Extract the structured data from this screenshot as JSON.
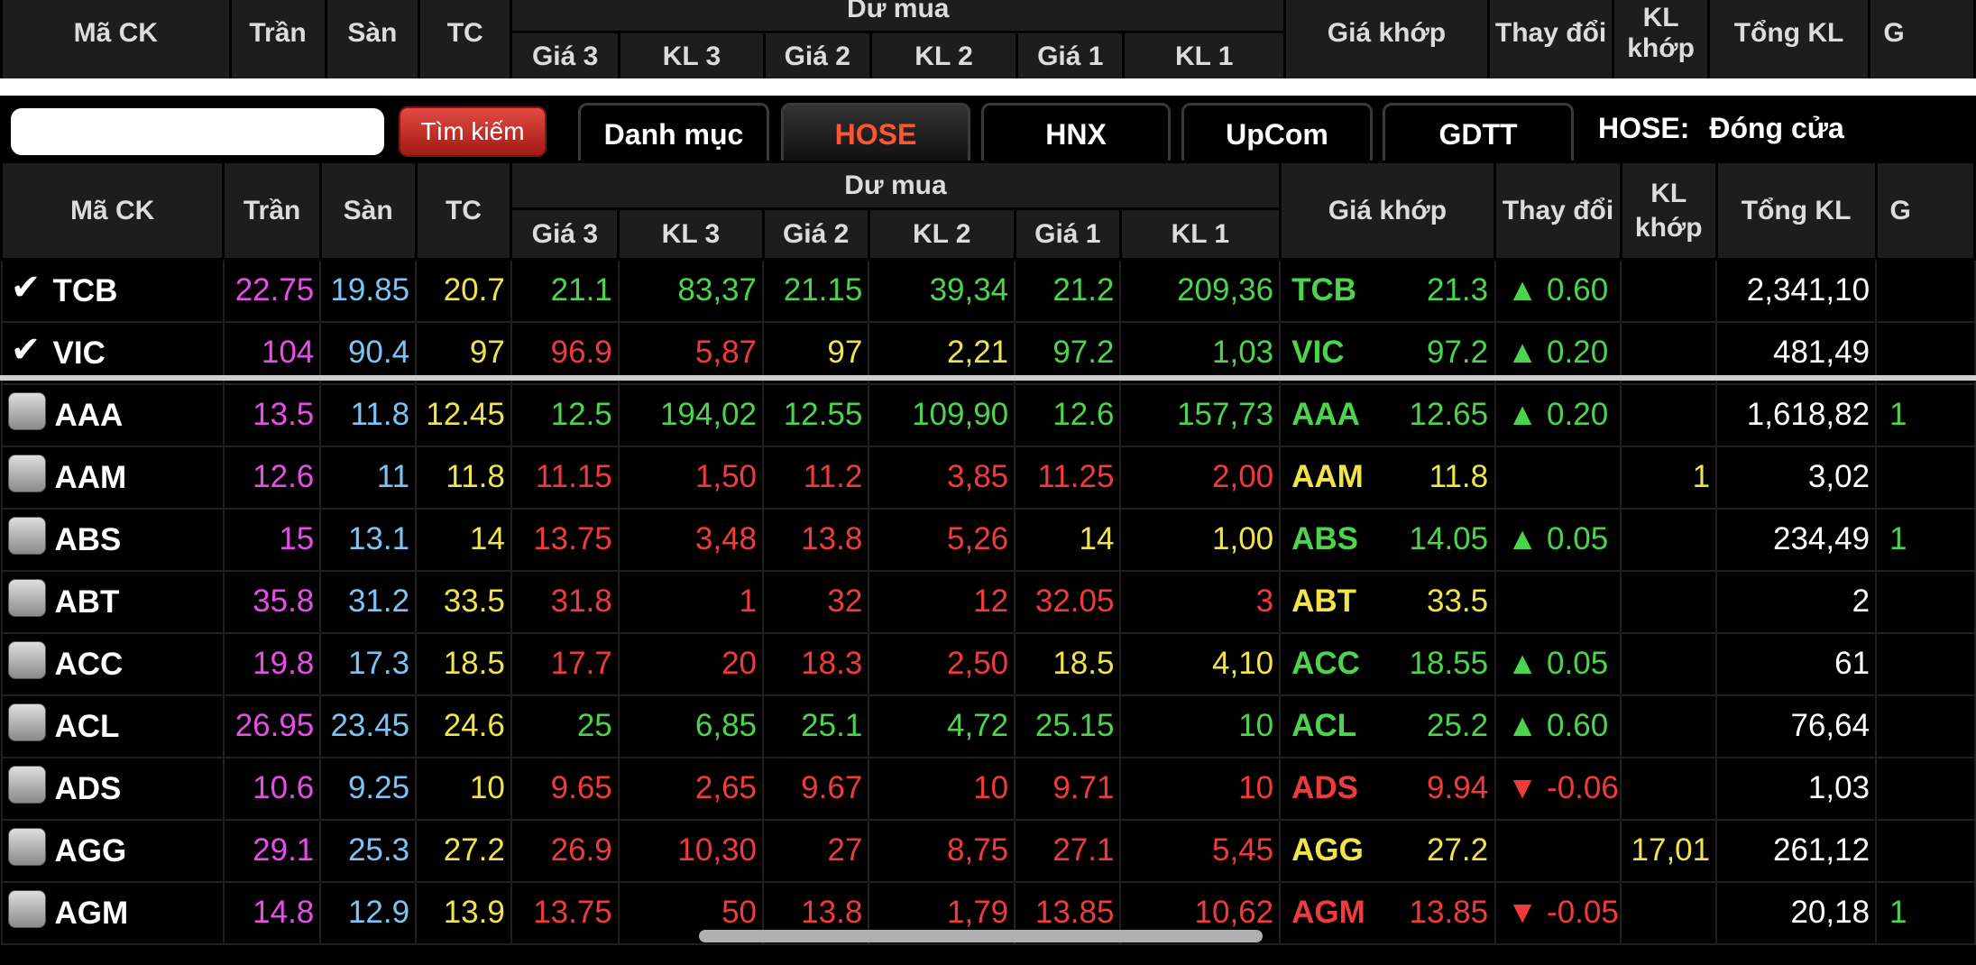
{
  "headers": {
    "symbol": "Mã CK",
    "ceiling": "Trần",
    "floor": "Sàn",
    "reference": "TC",
    "bid_group": "Dư mua",
    "bid": [
      "Giá 3",
      "KL 3",
      "Giá 2",
      "KL 2",
      "Giá 1",
      "KL 1"
    ],
    "match_price": "Giá khớp",
    "change": "Thay đổi",
    "match_volume": "KL khớp",
    "total_volume": "Tổng KL",
    "next_cut": "G"
  },
  "search": {
    "placeholder": "",
    "button_label": "Tìm kiếm"
  },
  "tabs": [
    {
      "label": "Danh mục",
      "active": false
    },
    {
      "label": "HOSE",
      "active": true
    },
    {
      "label": "HNX",
      "active": false
    },
    {
      "label": "UpCom",
      "active": false
    },
    {
      "label": "GDTT",
      "active": false
    }
  ],
  "market_status": {
    "exchange": "HOSE:",
    "status": "Đóng cửa"
  },
  "colors": {
    "ceiling": "#e94de9",
    "floor": "#7cc4f5",
    "reference": "#f0e44a",
    "up": "#4cd44c",
    "down": "#ef3b3b",
    "active_tab": "#ff5533"
  },
  "watchlist": [
    {
      "symbol": "TCB",
      "checked": true,
      "ceiling": "22.75",
      "floor": "19.85",
      "ref": "20.7",
      "bids": [
        {
          "p": "21.1",
          "c": "up"
        },
        {
          "p": "83,37",
          "c": "up"
        },
        {
          "p": "21.15",
          "c": "up"
        },
        {
          "p": "39,34",
          "c": "up"
        },
        {
          "p": "21.2",
          "c": "up"
        },
        {
          "p": "209,36",
          "c": "up"
        }
      ],
      "match_price": "21.3",
      "match_color": "up",
      "change": "▲ 0.60",
      "change_color": "up",
      "match_volume": "",
      "match_volume_color": "white",
      "total_volume": "2,341,10",
      "extra": ""
    },
    {
      "symbol": "VIC",
      "checked": true,
      "ceiling": "104",
      "floor": "90.4",
      "ref": "97",
      "bids": [
        {
          "p": "96.9",
          "c": "down"
        },
        {
          "p": "5,87",
          "c": "down"
        },
        {
          "p": "97",
          "c": "ref"
        },
        {
          "p": "2,21",
          "c": "ref"
        },
        {
          "p": "97.2",
          "c": "up"
        },
        {
          "p": "1,03",
          "c": "up"
        }
      ],
      "match_price": "97.2",
      "match_color": "up",
      "change": "▲ 0.20",
      "change_color": "up",
      "match_volume": "",
      "match_volume_color": "white",
      "total_volume": "481,49",
      "extra": ""
    }
  ],
  "stocks": [
    {
      "symbol": "AAA",
      "checked": false,
      "ceiling": "13.5",
      "floor": "11.8",
      "ref": "12.45",
      "bids": [
        {
          "p": "12.5",
          "c": "up"
        },
        {
          "p": "194,02",
          "c": "up"
        },
        {
          "p": "12.55",
          "c": "up"
        },
        {
          "p": "109,90",
          "c": "up"
        },
        {
          "p": "12.6",
          "c": "up"
        },
        {
          "p": "157,73",
          "c": "up"
        }
      ],
      "match_price": "12.65",
      "match_color": "up",
      "change": "▲ 0.20",
      "change_color": "up",
      "match_volume": "",
      "match_volume_color": "white",
      "total_volume": "1,618,82",
      "extra": "1"
    },
    {
      "symbol": "AAM",
      "checked": false,
      "ceiling": "12.6",
      "floor": "11",
      "ref": "11.8",
      "bids": [
        {
          "p": "11.15",
          "c": "down"
        },
        {
          "p": "1,50",
          "c": "down"
        },
        {
          "p": "11.2",
          "c": "down"
        },
        {
          "p": "3,85",
          "c": "down"
        },
        {
          "p": "11.25",
          "c": "down"
        },
        {
          "p": "2,00",
          "c": "down"
        }
      ],
      "match_price": "11.8",
      "match_color": "ref",
      "change": "",
      "change_color": "ref",
      "match_volume": "1",
      "match_volume_color": "ref",
      "total_volume": "3,02",
      "extra": ""
    },
    {
      "symbol": "ABS",
      "checked": false,
      "ceiling": "15",
      "floor": "13.1",
      "ref": "14",
      "bids": [
        {
          "p": "13.75",
          "c": "down"
        },
        {
          "p": "3,48",
          "c": "down"
        },
        {
          "p": "13.8",
          "c": "down"
        },
        {
          "p": "5,26",
          "c": "down"
        },
        {
          "p": "14",
          "c": "ref"
        },
        {
          "p": "1,00",
          "c": "ref"
        }
      ],
      "match_price": "14.05",
      "match_color": "up",
      "change": "▲ 0.05",
      "change_color": "up",
      "match_volume": "",
      "match_volume_color": "white",
      "total_volume": "234,49",
      "extra": "1"
    },
    {
      "symbol": "ABT",
      "checked": false,
      "ceiling": "35.8",
      "floor": "31.2",
      "ref": "33.5",
      "bids": [
        {
          "p": "31.8",
          "c": "down"
        },
        {
          "p": "1",
          "c": "down"
        },
        {
          "p": "32",
          "c": "down"
        },
        {
          "p": "12",
          "c": "down"
        },
        {
          "p": "32.05",
          "c": "down"
        },
        {
          "p": "3",
          "c": "down"
        }
      ],
      "match_price": "33.5",
      "match_color": "ref",
      "change": "",
      "change_color": "ref",
      "match_volume": "",
      "match_volume_color": "white",
      "total_volume": "2",
      "extra": ""
    },
    {
      "symbol": "ACC",
      "checked": false,
      "ceiling": "19.8",
      "floor": "17.3",
      "ref": "18.5",
      "bids": [
        {
          "p": "17.7",
          "c": "down"
        },
        {
          "p": "20",
          "c": "down"
        },
        {
          "p": "18.3",
          "c": "down"
        },
        {
          "p": "2,50",
          "c": "down"
        },
        {
          "p": "18.5",
          "c": "ref"
        },
        {
          "p": "4,10",
          "c": "ref"
        }
      ],
      "match_price": "18.55",
      "match_color": "up",
      "change": "▲ 0.05",
      "change_color": "up",
      "match_volume": "",
      "match_volume_color": "white",
      "total_volume": "61",
      "extra": ""
    },
    {
      "symbol": "ACL",
      "checked": false,
      "ceiling": "26.95",
      "floor": "23.45",
      "ref": "24.6",
      "bids": [
        {
          "p": "25",
          "c": "up"
        },
        {
          "p": "6,85",
          "c": "up"
        },
        {
          "p": "25.1",
          "c": "up"
        },
        {
          "p": "4,72",
          "c": "up"
        },
        {
          "p": "25.15",
          "c": "up"
        },
        {
          "p": "10",
          "c": "up"
        }
      ],
      "match_price": "25.2",
      "match_color": "up",
      "change": "▲ 0.60",
      "change_color": "up",
      "match_volume": "",
      "match_volume_color": "white",
      "total_volume": "76,64",
      "extra": ""
    },
    {
      "symbol": "ADS",
      "checked": false,
      "ceiling": "10.6",
      "floor": "9.25",
      "ref": "10",
      "bids": [
        {
          "p": "9.65",
          "c": "down"
        },
        {
          "p": "2,65",
          "c": "down"
        },
        {
          "p": "9.67",
          "c": "down"
        },
        {
          "p": "10",
          "c": "down"
        },
        {
          "p": "9.71",
          "c": "down"
        },
        {
          "p": "10",
          "c": "down"
        }
      ],
      "match_price": "9.94",
      "match_color": "down",
      "change": "▼ -0.06",
      "change_color": "down",
      "match_volume": "",
      "match_volume_color": "white",
      "total_volume": "1,03",
      "extra": ""
    },
    {
      "symbol": "AGG",
      "checked": false,
      "ceiling": "29.1",
      "floor": "25.3",
      "ref": "27.2",
      "bids": [
        {
          "p": "26.9",
          "c": "down"
        },
        {
          "p": "10,30",
          "c": "down"
        },
        {
          "p": "27",
          "c": "down"
        },
        {
          "p": "8,75",
          "c": "down"
        },
        {
          "p": "27.1",
          "c": "down"
        },
        {
          "p": "5,45",
          "c": "down"
        }
      ],
      "match_price": "27.2",
      "match_color": "ref",
      "change": "",
      "change_color": "ref",
      "match_volume": "17,01",
      "match_volume_color": "ref",
      "total_volume": "261,12",
      "extra": ""
    },
    {
      "symbol": "AGM",
      "checked": false,
      "ceiling": "14.8",
      "floor": "12.9",
      "ref": "13.9",
      "bids": [
        {
          "p": "13.75",
          "c": "down"
        },
        {
          "p": "50",
          "c": "down"
        },
        {
          "p": "13.8",
          "c": "down"
        },
        {
          "p": "1,79",
          "c": "down"
        },
        {
          "p": "13.85",
          "c": "down"
        },
        {
          "p": "10,62",
          "c": "down"
        }
      ],
      "match_price": "13.85",
      "match_color": "down",
      "change": "▼ -0.05",
      "change_color": "down",
      "match_volume": "",
      "match_volume_color": "white",
      "total_volume": "20,18",
      "extra": "1"
    }
  ]
}
